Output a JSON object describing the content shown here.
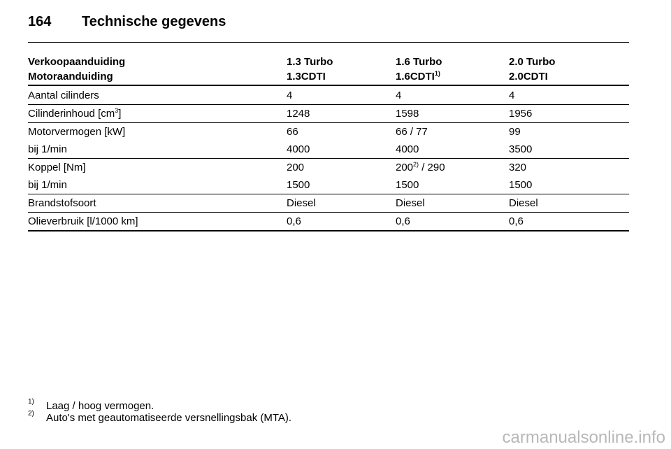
{
  "header": {
    "page_number": "164",
    "title": "Technische gegevens"
  },
  "table": {
    "head": [
      [
        "Verkoopaanduiding",
        "1.3 Turbo",
        "1.6 Turbo",
        "2.0 Turbo"
      ],
      [
        "Motoraanduiding",
        "1.3CDTI",
        {
          "text": "1.6CDTI",
          "sup": "1)"
        },
        "2.0CDTI"
      ]
    ],
    "groups": [
      [
        [
          "Aantal cilinders",
          "4",
          "4",
          "4"
        ]
      ],
      [
        [
          {
            "text": "Cilinderinhoud [cm",
            "sup": "3",
            "after": "]"
          },
          "1248",
          "1598",
          "1956"
        ]
      ],
      [
        [
          "Motorvermogen [kW]",
          "66",
          "66 / 77",
          "99"
        ],
        [
          "bij 1/min",
          "4000",
          "4000",
          "3500"
        ]
      ],
      [
        [
          "Koppel [Nm]",
          "200",
          {
            "text": "200",
            "sup": "2)",
            "after": " / 290"
          },
          "320"
        ],
        [
          "bij 1/min",
          "1500",
          "1500",
          "1500"
        ]
      ],
      [
        [
          "Brandstofsoort",
          "Diesel",
          "Diesel",
          "Diesel"
        ]
      ],
      [
        [
          "Olieverbruik [l/1000 km]",
          "0,6",
          "0,6",
          "0,6"
        ]
      ]
    ]
  },
  "footnotes": [
    {
      "mark": "1)",
      "text": "Laag / hoog vermogen."
    },
    {
      "mark": "2)",
      "text": "Auto's met geautomatiseerde versnellingsbak (MTA)."
    }
  ],
  "watermark": "carmanualsonline.info"
}
